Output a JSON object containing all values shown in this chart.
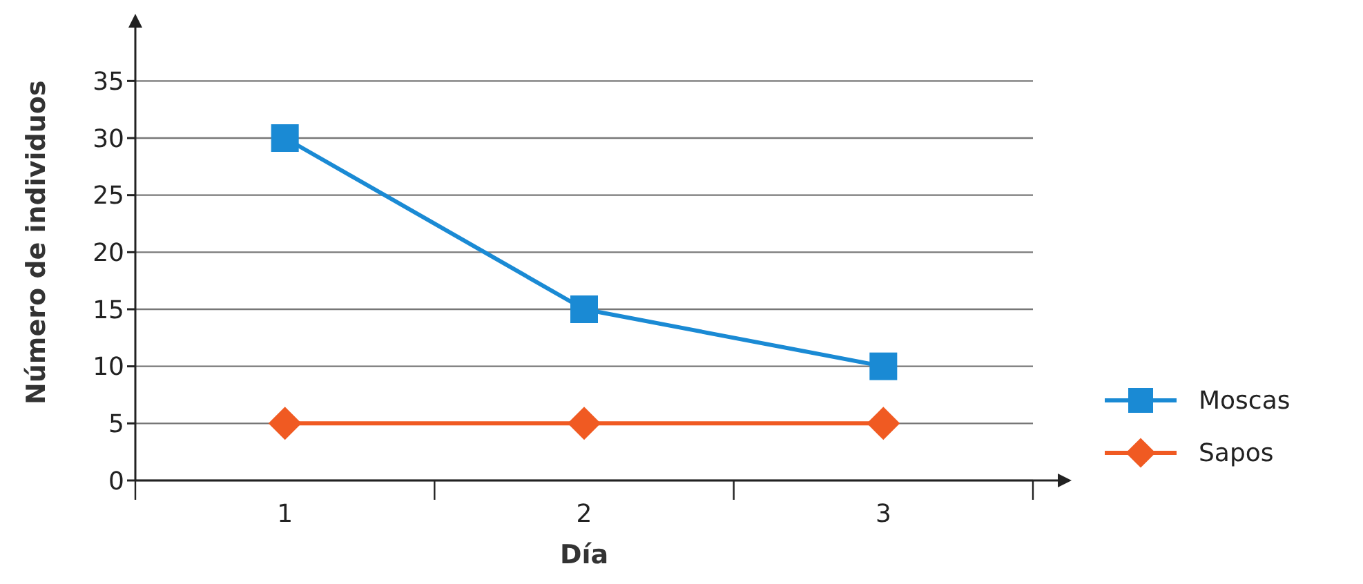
{
  "chart_data": {
    "type": "line",
    "xlabel": "Día",
    "ylabel": "Número de individuos",
    "categories": [
      "1",
      "2",
      "3"
    ],
    "series": [
      {
        "name": "Moscas",
        "color": "#1a8ad4",
        "marker": "square",
        "values": [
          30,
          15,
          10
        ]
      },
      {
        "name": "Sapos",
        "color": "#f05a22",
        "marker": "diamond",
        "values": [
          5,
          5,
          5
        ]
      }
    ],
    "ylim": [
      0,
      37.5
    ],
    "yticks": [
      0,
      5,
      10,
      15,
      20,
      25,
      30,
      35
    ],
    "grid": "y",
    "legend": "right",
    "line_style": "solid"
  }
}
